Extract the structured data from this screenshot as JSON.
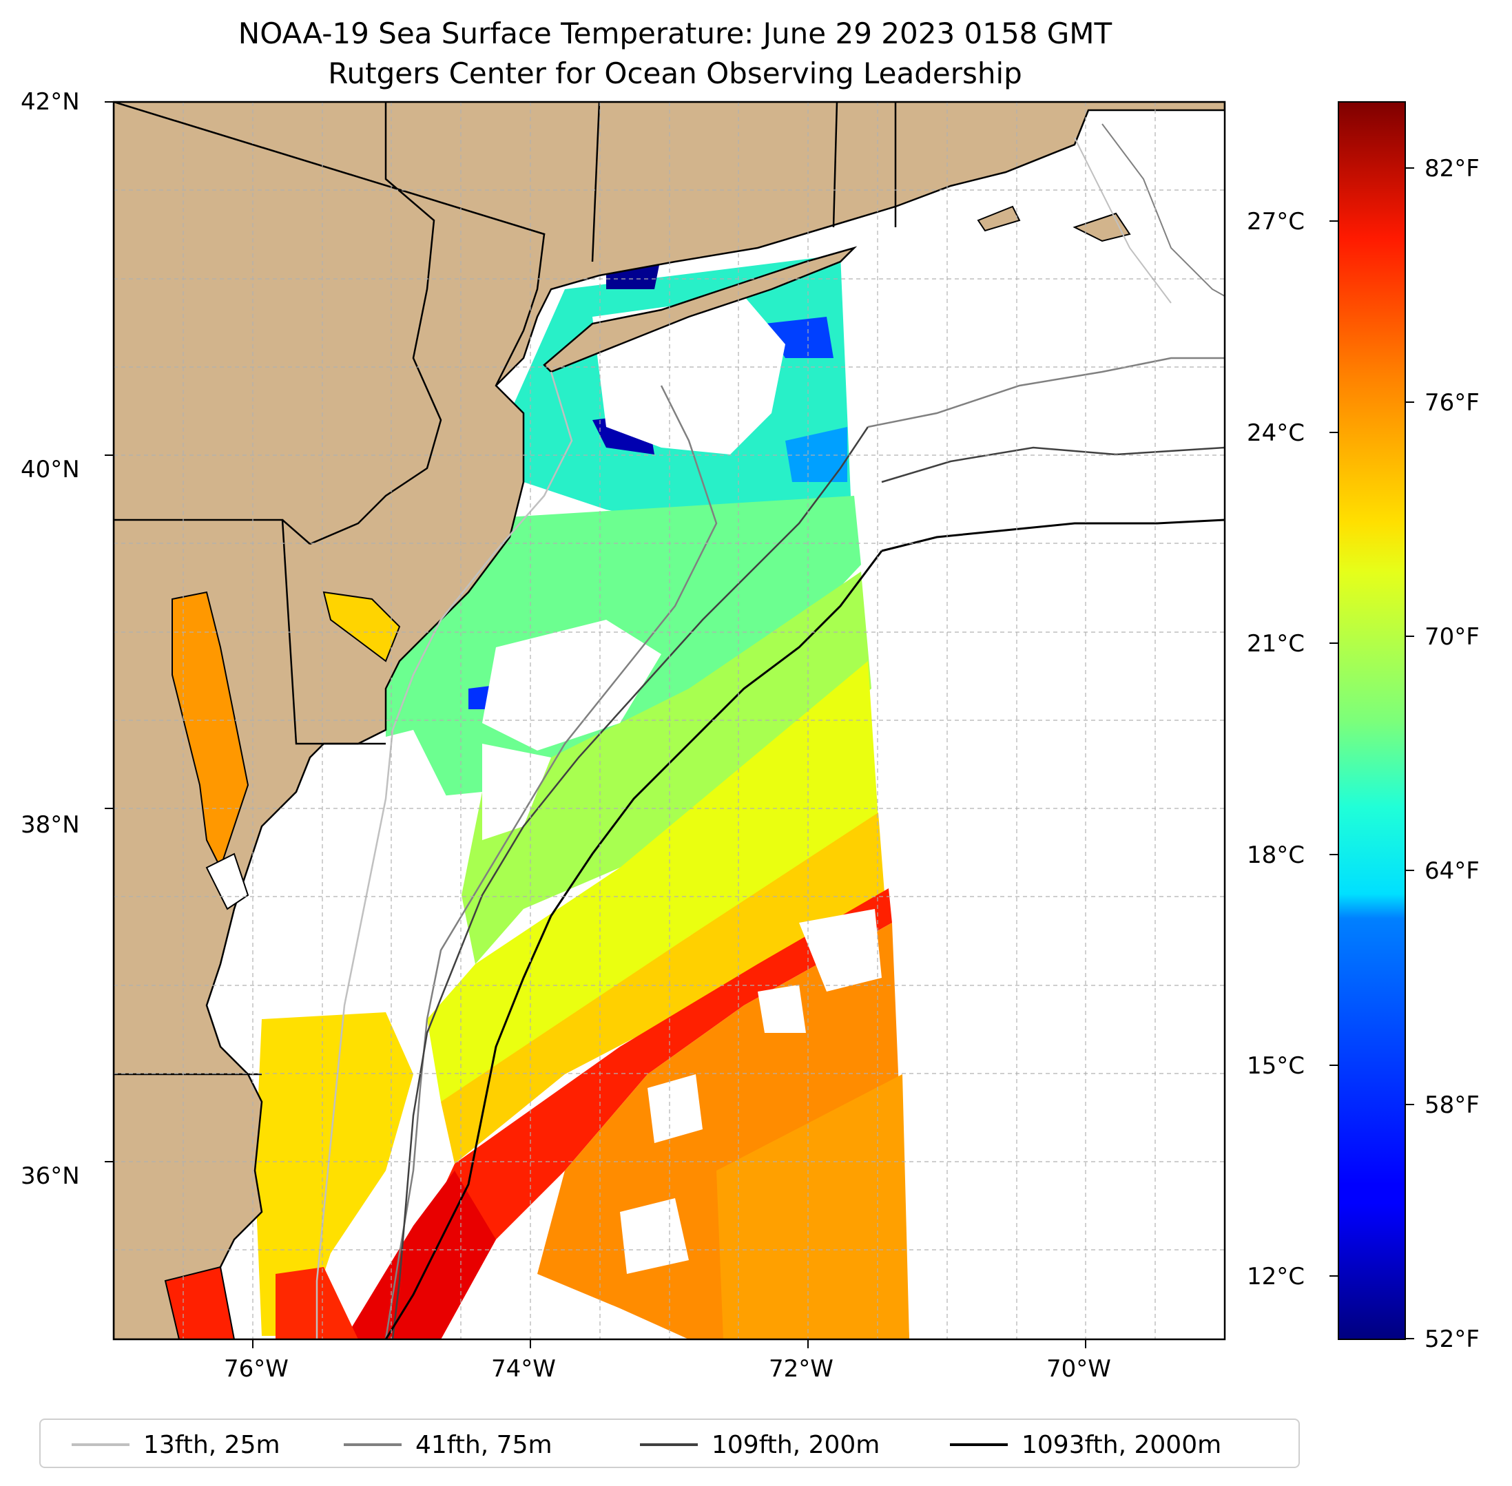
{
  "title": {
    "line1": "NOAA-19 Sea Surface Temperature: June 29 2023 0158 GMT",
    "line2": "Rutgers Center for Ocean Observing Leadership"
  },
  "axes": {
    "lon_range": [
      -77,
      -69
    ],
    "lat_range": [
      35,
      42
    ],
    "x_ticks": [
      "76°W",
      "74°W",
      "72°W",
      "70°W"
    ],
    "y_ticks": [
      "42°N",
      "40°N",
      "38°N",
      "36°N"
    ],
    "grid": true,
    "land_color": "#d2b48c"
  },
  "colorbar": {
    "colormap": "jet",
    "fahrenheit_range": [
      52,
      85
    ],
    "celsius_ticks": [
      "27°C",
      "24°C",
      "21°C",
      "18°C",
      "15°C",
      "12°C"
    ],
    "fahrenheit_ticks": [
      "82°F",
      "76°F",
      "70°F",
      "64°F",
      "58°F",
      "52°F"
    ]
  },
  "legend": [
    {
      "label": "13fth, 25m",
      "color": "#c0c0c0"
    },
    {
      "label": "41fth, 75m",
      "color": "#808080"
    },
    {
      "label": "109fth, 200m",
      "color": "#404040"
    },
    {
      "label": "1093fth, 2000m",
      "color": "#000000"
    }
  ]
}
